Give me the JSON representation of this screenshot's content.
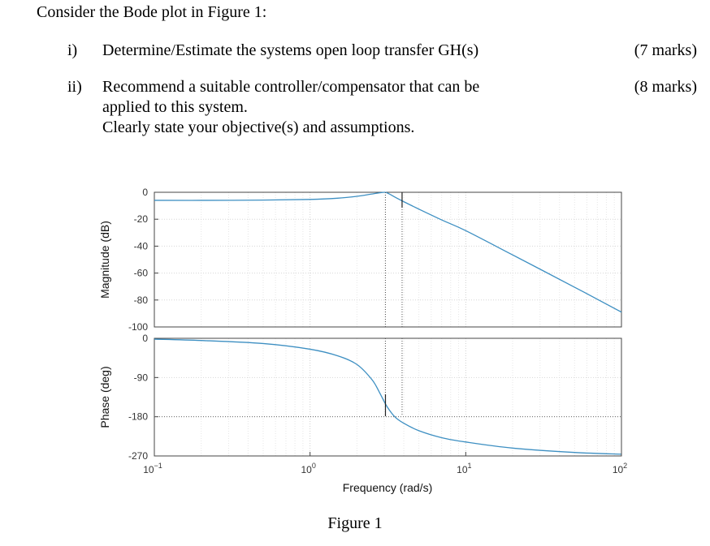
{
  "document": {
    "intro": "Consider the Bode plot in Figure 1:",
    "questions": [
      {
        "num": "i)",
        "lines": [
          "Determine/Estimate the systems open loop transfer GH(s)"
        ],
        "marks": "(7 marks)"
      },
      {
        "num": "ii)",
        "lines": [
          "Recommend a suitable controller/compensator that can be",
          "applied to this system.",
          "Clearly state your objective(s) and assumptions."
        ],
        "marks": "(8 marks)"
      }
    ],
    "figure_caption": "Figure 1"
  },
  "chart_data": [
    {
      "type": "line",
      "panel": "magnitude",
      "ylabel": "Magnitude (dB)",
      "xscale": "log",
      "xlim": [
        0.1,
        100
      ],
      "ylim": [
        -100,
        0
      ],
      "yticks": [
        0,
        -20,
        -40,
        -60,
        -80,
        -100
      ],
      "grid": true,
      "color": "#3d8fc2",
      "x": [
        0.1,
        0.2,
        0.5,
        1,
        1.5,
        2,
        2.5,
        3,
        3.2,
        3.5,
        4,
        5,
        7,
        10,
        20,
        50,
        100
      ],
      "y": [
        -6,
        -6,
        -5.8,
        -5.3,
        -4.4,
        -3,
        -1.3,
        0,
        -1,
        -3.5,
        -7,
        -12.5,
        -20.5,
        -28.5,
        -46.5,
        -70.5,
        -89
      ]
    },
    {
      "type": "line",
      "panel": "phase",
      "ylabel": "Phase (deg)",
      "xlabel": "Frequency (rad/s)",
      "xscale": "log",
      "xlim": [
        0.1,
        100
      ],
      "xticks": [
        "10^{-1}",
        "10^{0}",
        "10^{1}",
        "10^{2}"
      ],
      "ylim": [
        -270,
        0
      ],
      "yticks": [
        0,
        -90,
        -180,
        -270
      ],
      "grid": true,
      "color": "#3d8fc2",
      "x": [
        0.1,
        0.2,
        0.5,
        1,
        1.5,
        2,
        2.5,
        2.8,
        3.1,
        3.5,
        4,
        5,
        7,
        10,
        20,
        50,
        100
      ],
      "y": [
        -2,
        -5,
        -12,
        -25,
        -40,
        -60,
        -95,
        -125,
        -155,
        -180,
        -195,
        -212,
        -228,
        -238,
        -252,
        -262,
        -266
      ]
    }
  ]
}
